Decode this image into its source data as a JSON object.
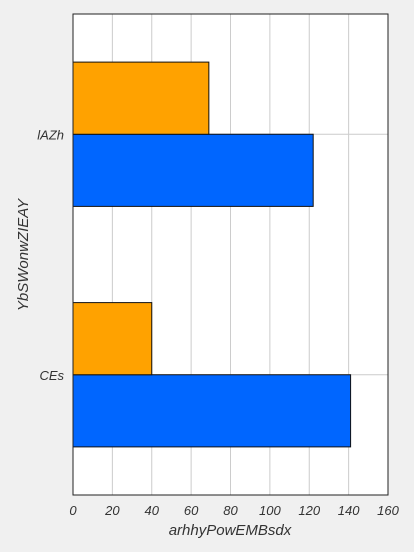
{
  "chart_data": {
    "type": "bar",
    "orientation": "horizontal",
    "title": "",
    "xlabel": "arhhyPowEMBsdx",
    "ylabel": "YbSWonwZIEAY",
    "categories": [
      "CEs",
      "lAZh"
    ],
    "series": [
      {
        "values": [
          141,
          122
        ],
        "color": "#0066ff"
      },
      {
        "values": [
          40,
          69
        ],
        "color": "#ffa200"
      }
    ],
    "xlim": [
      0,
      160
    ],
    "xticks": [
      0,
      20,
      40,
      60,
      80,
      100,
      120,
      140,
      160
    ],
    "grid": true,
    "legend": "none"
  }
}
